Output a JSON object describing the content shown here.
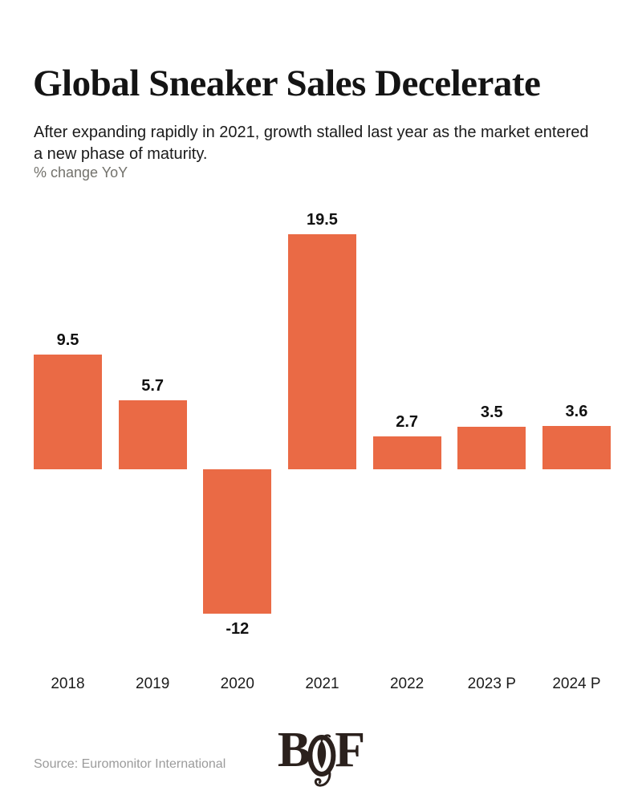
{
  "header": {
    "title": "Global Sneaker Sales Decelerate",
    "subtitle": "After expanding rapidly in 2021, growth stalled last year as the market entered a new phase of maturity.",
    "unit_label": "% change YoY"
  },
  "chart_data": {
    "type": "bar",
    "title": "Global Sneaker Sales Decelerate",
    "categories": [
      "2018",
      "2019",
      "2020",
      "2021",
      "2022",
      "2023 P",
      "2024 P"
    ],
    "values": [
      9.5,
      5.7,
      -12,
      19.5,
      2.7,
      3.5,
      3.6
    ],
    "value_labels": [
      "9.5",
      "5.7",
      "-12",
      "19.5",
      "2.7",
      "3.5",
      "3.6"
    ],
    "xlabel": "",
    "ylabel": "% change YoY",
    "ylim": [
      -15,
      22.33
    ],
    "grid": false,
    "legend": false,
    "axis_lines": false,
    "bar_color": "#EA6A45",
    "value_label_color": "#111111"
  },
  "footer": {
    "source": "Source: Euromonitor International",
    "logo": {
      "name": "BoF",
      "letter_b": "B",
      "letter_f": "F",
      "color": "#2B211D"
    }
  },
  "colors": {
    "background": "#FFFFFF",
    "title": "#141414",
    "subtitle": "#1B1B1B",
    "muted": "#73726C",
    "source": "#9B9B9B"
  }
}
